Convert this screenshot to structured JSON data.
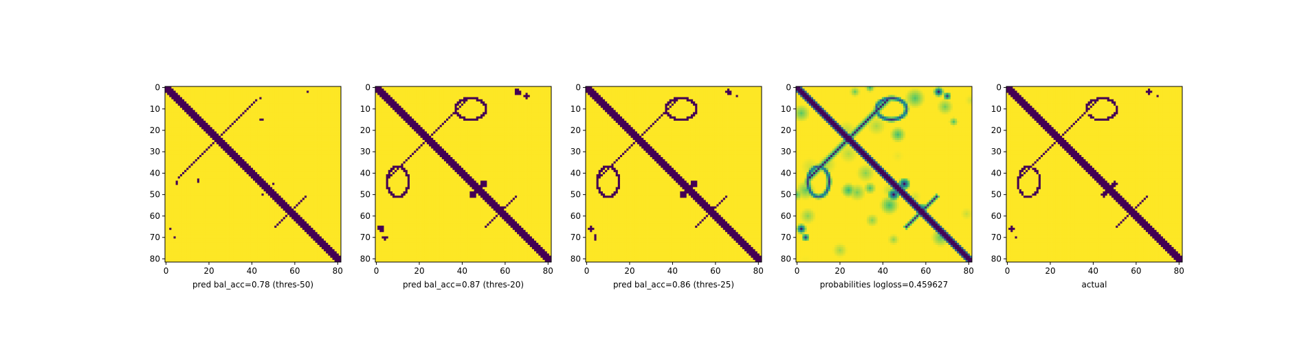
{
  "chart_data": [
    {
      "type": "heatmap",
      "title": "",
      "xlabel": "pred bal_acc=0.78 (thres-50)",
      "ylabel": "",
      "size": 82,
      "xlim": [
        0,
        81
      ],
      "ylim": [
        81,
        0
      ],
      "x_ticks": [
        0,
        20,
        40,
        60,
        80
      ],
      "y_ticks": [
        0,
        10,
        20,
        30,
        40,
        50,
        60,
        70,
        80
      ],
      "colormap": "viridis",
      "values": "binary contact map: 1 (purple) on main diagonal, small contacts near (10,30) and (30,10), (65,0) and (0,65); 0 (yellow) elsewhere"
    },
    {
      "type": "heatmap",
      "title": "",
      "xlabel": "pred bal_acc=0.87 (thres-20)",
      "ylabel": "",
      "size": 82,
      "xlim": [
        0,
        81
      ],
      "ylim": [
        81,
        0
      ],
      "x_ticks": [
        0,
        20,
        40,
        60,
        80
      ],
      "y_ticks": [
        0,
        10,
        20,
        30,
        40,
        50,
        60,
        70,
        80
      ],
      "colormap": "viridis",
      "values": "binary contact map: main diagonal plus anti-diagonal cross near (23,23), loops around (45,8) and (8,45), blob near (45,50) and (58,58)"
    },
    {
      "type": "heatmap",
      "title": "",
      "xlabel": "pred bal_acc=0.86 (thres-25)",
      "ylabel": "",
      "size": 82,
      "xlim": [
        0,
        81
      ],
      "ylim": [
        81,
        0
      ],
      "x_ticks": [
        0,
        20,
        40,
        60,
        80
      ],
      "y_ticks": [
        0,
        10,
        20,
        30,
        40,
        50,
        60,
        70,
        80
      ],
      "colormap": "viridis",
      "values": "binary contact map similar to thres-20 with slightly fewer contacts"
    },
    {
      "type": "heatmap",
      "title": "",
      "xlabel": "probabilities logloss=0.459627",
      "ylabel": "",
      "size": 82,
      "xlim": [
        0,
        81
      ],
      "ylim": [
        81,
        0
      ],
      "x_ticks": [
        0,
        20,
        40,
        60,
        80
      ],
      "y_ticks": [
        0,
        10,
        20,
        30,
        40,
        50,
        60,
        70,
        80
      ],
      "colormap": "viridis",
      "values": "continuous probability map 0..1 with strong diagonal and soft off-diagonal patches"
    },
    {
      "type": "heatmap",
      "title": "",
      "xlabel": "actual",
      "ylabel": "",
      "size": 82,
      "xlim": [
        0,
        81
      ],
      "ylim": [
        81,
        0
      ],
      "x_ticks": [
        0,
        20,
        40,
        60,
        80
      ],
      "y_ticks": [
        0,
        10,
        20,
        30,
        40,
        50,
        60,
        70,
        80
      ],
      "colormap": "viridis",
      "values": "binary ground-truth contact map with diagonal, anti-diagonal cross and scattered contacts"
    }
  ],
  "colors": {
    "contact": "#440154",
    "no_contact": "#fde725",
    "mid1": "#21918c",
    "mid2": "#5ec962"
  }
}
